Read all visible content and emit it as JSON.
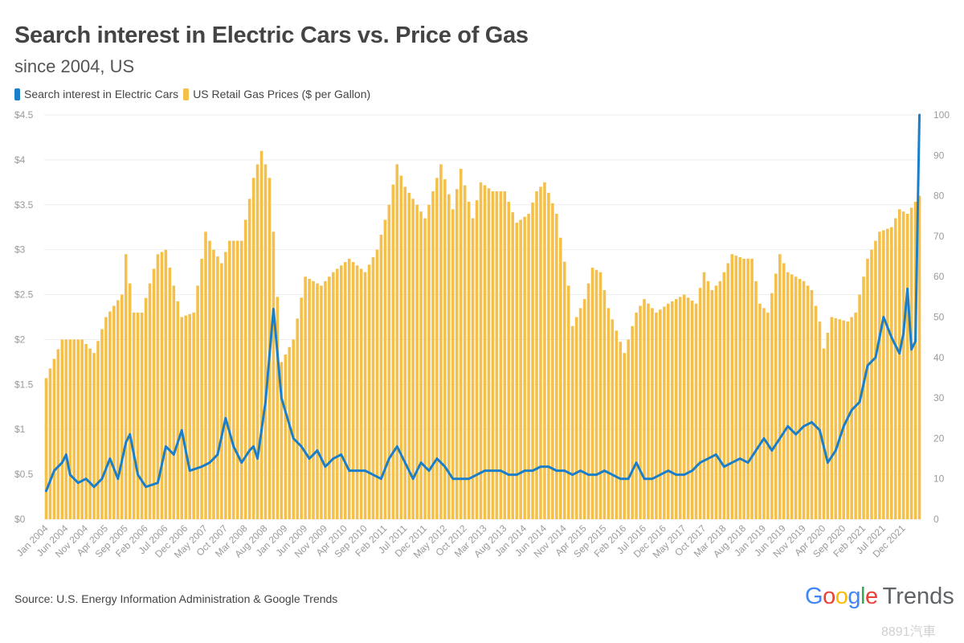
{
  "chart_data": {
    "type": "bar+line",
    "title": "Search interest in Electric Cars vs. Price of Gas",
    "subtitle": "since 2004, US",
    "legend": [
      {
        "name": "Search interest in Electric Cars",
        "color": "#1a7ec8"
      },
      {
        "name": "US Retail Gas Prices ($ per Gallon)",
        "color": "#f5c04a"
      }
    ],
    "legend_placement": "top-left",
    "x_tick_labels": [
      "Jan 2004",
      "Jun 2004",
      "Nov 2004",
      "Apr 2005",
      "Sep 2005",
      "Feb 2006",
      "Jul 2006",
      "Dec 2006",
      "May 2007",
      "Oct 2007",
      "Mar 2008",
      "Aug 2008",
      "Jan 2009",
      "Jun 2009",
      "Nov 2009",
      "Apr 2010",
      "Sep 2010",
      "Feb 2011",
      "Jul 2011",
      "Dec 2011",
      "May 2012",
      "Oct 2012",
      "Mar 2013",
      "Aug 2013",
      "Jan 2014",
      "Jun 2014",
      "Nov 2014",
      "Apr 2015",
      "Sep 2015",
      "Feb 2016",
      "Jul 2016",
      "Dec 2016",
      "May 2017",
      "Oct 2017",
      "Mar 2018",
      "Aug 2018",
      "Jan 2019",
      "Jun 2019",
      "Nov 2019",
      "Apr 2020",
      "Sep 2020",
      "Feb 2021",
      "Jul 2021",
      "Dec 2021"
    ],
    "x_range": [
      "Jan 2004",
      "Apr 2022"
    ],
    "y_left": {
      "ticks": [
        "$0",
        "$0.5",
        "$1",
        "$1.5",
        "$2",
        "$2.5",
        "$3",
        "$3.5",
        "$4",
        "$4.5"
      ],
      "range": [
        0,
        4.5
      ]
    },
    "y_right": {
      "ticks": [
        "0",
        "10",
        "20",
        "30",
        "40",
        "50",
        "60",
        "70",
        "80",
        "90",
        "100"
      ],
      "range": [
        0,
        100
      ]
    },
    "grid": true,
    "gas_price_knots": [
      [
        "2004-01",
        1.57
      ],
      [
        "2004-05",
        2.0
      ],
      [
        "2004-10",
        2.0
      ],
      [
        "2005-01",
        1.85
      ],
      [
        "2005-04",
        2.25
      ],
      [
        "2005-08",
        2.5
      ],
      [
        "2005-09",
        2.95
      ],
      [
        "2005-11",
        2.3
      ],
      [
        "2006-01",
        2.3
      ],
      [
        "2006-05",
        2.95
      ],
      [
        "2006-07",
        3.0
      ],
      [
        "2006-09",
        2.6
      ],
      [
        "2006-11",
        2.25
      ],
      [
        "2007-02",
        2.3
      ],
      [
        "2007-05",
        3.2
      ],
      [
        "2007-07",
        3.0
      ],
      [
        "2007-09",
        2.85
      ],
      [
        "2007-11",
        3.1
      ],
      [
        "2008-02",
        3.1
      ],
      [
        "2008-05",
        3.8
      ],
      [
        "2008-07",
        4.1
      ],
      [
        "2008-09",
        3.8
      ],
      [
        "2008-10",
        3.2
      ],
      [
        "2008-12",
        1.75
      ],
      [
        "2009-03",
        2.0
      ],
      [
        "2009-06",
        2.7
      ],
      [
        "2009-10",
        2.6
      ],
      [
        "2010-01",
        2.75
      ],
      [
        "2010-05",
        2.9
      ],
      [
        "2010-09",
        2.75
      ],
      [
        "2010-12",
        3.0
      ],
      [
        "2011-03",
        3.5
      ],
      [
        "2011-05",
        3.95
      ],
      [
        "2011-07",
        3.7
      ],
      [
        "2011-10",
        3.5
      ],
      [
        "2011-12",
        3.35
      ],
      [
        "2012-04",
        3.95
      ],
      [
        "2012-07",
        3.45
      ],
      [
        "2012-09",
        3.9
      ],
      [
        "2012-12",
        3.35
      ],
      [
        "2013-02",
        3.75
      ],
      [
        "2013-05",
        3.65
      ],
      [
        "2013-08",
        3.65
      ],
      [
        "2013-11",
        3.3
      ],
      [
        "2014-02",
        3.4
      ],
      [
        "2014-04",
        3.65
      ],
      [
        "2014-06",
        3.75
      ],
      [
        "2014-09",
        3.4
      ],
      [
        "2014-12",
        2.6
      ],
      [
        "2015-01",
        2.15
      ],
      [
        "2015-04",
        2.45
      ],
      [
        "2015-06",
        2.8
      ],
      [
        "2015-08",
        2.75
      ],
      [
        "2015-10",
        2.35
      ],
      [
        "2016-02",
        1.85
      ],
      [
        "2016-05",
        2.3
      ],
      [
        "2016-07",
        2.45
      ],
      [
        "2016-10",
        2.3
      ],
      [
        "2017-01",
        2.4
      ],
      [
        "2017-05",
        2.5
      ],
      [
        "2017-08",
        2.4
      ],
      [
        "2017-10",
        2.75
      ],
      [
        "2017-12",
        2.55
      ],
      [
        "2018-02",
        2.65
      ],
      [
        "2018-05",
        2.95
      ],
      [
        "2018-08",
        2.9
      ],
      [
        "2018-10",
        2.9
      ],
      [
        "2018-12",
        2.4
      ],
      [
        "2019-02",
        2.3
      ],
      [
        "2019-05",
        2.95
      ],
      [
        "2019-07",
        2.75
      ],
      [
        "2019-11",
        2.65
      ],
      [
        "2020-01",
        2.55
      ],
      [
        "2020-03",
        2.2
      ],
      [
        "2020-04",
        1.9
      ],
      [
        "2020-06",
        2.25
      ],
      [
        "2020-10",
        2.2
      ],
      [
        "2020-12",
        2.3
      ],
      [
        "2021-03",
        2.9
      ],
      [
        "2021-06",
        3.2
      ],
      [
        "2021-09",
        3.25
      ],
      [
        "2021-11",
        3.45
      ],
      [
        "2022-01",
        3.4
      ],
      [
        "2022-04",
        3.6
      ]
    ],
    "search_interest_knots": [
      [
        "2004-01",
        7
      ],
      [
        "2004-03",
        12
      ],
      [
        "2004-05",
        14
      ],
      [
        "2004-06",
        16
      ],
      [
        "2004-07",
        11
      ],
      [
        "2004-09",
        9
      ],
      [
        "2004-11",
        10
      ],
      [
        "2005-01",
        8
      ],
      [
        "2005-03",
        10
      ],
      [
        "2005-05",
        15
      ],
      [
        "2005-07",
        10
      ],
      [
        "2005-09",
        19
      ],
      [
        "2005-10",
        21
      ],
      [
        "2005-12",
        11
      ],
      [
        "2006-02",
        8
      ],
      [
        "2006-05",
        9
      ],
      [
        "2006-07",
        18
      ],
      [
        "2006-09",
        16
      ],
      [
        "2006-11",
        22
      ],
      [
        "2007-01",
        12
      ],
      [
        "2007-04",
        13
      ],
      [
        "2007-06",
        14
      ],
      [
        "2007-08",
        16
      ],
      [
        "2007-10",
        25
      ],
      [
        "2007-12",
        18
      ],
      [
        "2008-02",
        14
      ],
      [
        "2008-04",
        17
      ],
      [
        "2008-05",
        18
      ],
      [
        "2008-06",
        15
      ],
      [
        "2008-08",
        29
      ],
      [
        "2008-10",
        52
      ],
      [
        "2008-12",
        30
      ],
      [
        "2009-03",
        20
      ],
      [
        "2009-05",
        18
      ],
      [
        "2009-07",
        15
      ],
      [
        "2009-09",
        17
      ],
      [
        "2009-11",
        13
      ],
      [
        "2010-01",
        15
      ],
      [
        "2010-03",
        16
      ],
      [
        "2010-05",
        12
      ],
      [
        "2010-07",
        12
      ],
      [
        "2010-09",
        12
      ],
      [
        "2010-11",
        11
      ],
      [
        "2011-01",
        10
      ],
      [
        "2011-03",
        15
      ],
      [
        "2011-05",
        18
      ],
      [
        "2011-07",
        14
      ],
      [
        "2011-09",
        10
      ],
      [
        "2011-11",
        14
      ],
      [
        "2012-01",
        12
      ],
      [
        "2012-03",
        15
      ],
      [
        "2012-05",
        13
      ],
      [
        "2012-07",
        10
      ],
      [
        "2012-09",
        10
      ],
      [
        "2012-11",
        10
      ],
      [
        "2013-01",
        11
      ],
      [
        "2013-03",
        12
      ],
      [
        "2013-05",
        12
      ],
      [
        "2013-07",
        12
      ],
      [
        "2013-09",
        11
      ],
      [
        "2013-11",
        11
      ],
      [
        "2014-01",
        12
      ],
      [
        "2014-03",
        12
      ],
      [
        "2014-05",
        13
      ],
      [
        "2014-07",
        13
      ],
      [
        "2014-09",
        12
      ],
      [
        "2014-11",
        12
      ],
      [
        "2015-01",
        11
      ],
      [
        "2015-03",
        12
      ],
      [
        "2015-05",
        11
      ],
      [
        "2015-07",
        11
      ],
      [
        "2015-09",
        12
      ],
      [
        "2015-11",
        11
      ],
      [
        "2016-01",
        10
      ],
      [
        "2016-03",
        10
      ],
      [
        "2016-05",
        14
      ],
      [
        "2016-07",
        10
      ],
      [
        "2016-09",
        10
      ],
      [
        "2016-11",
        11
      ],
      [
        "2017-01",
        12
      ],
      [
        "2017-03",
        11
      ],
      [
        "2017-05",
        11
      ],
      [
        "2017-07",
        12
      ],
      [
        "2017-09",
        14
      ],
      [
        "2017-11",
        15
      ],
      [
        "2018-01",
        16
      ],
      [
        "2018-03",
        13
      ],
      [
        "2018-05",
        14
      ],
      [
        "2018-07",
        15
      ],
      [
        "2018-09",
        14
      ],
      [
        "2018-11",
        17
      ],
      [
        "2019-01",
        20
      ],
      [
        "2019-03",
        17
      ],
      [
        "2019-05",
        20
      ],
      [
        "2019-07",
        23
      ],
      [
        "2019-09",
        21
      ],
      [
        "2019-11",
        23
      ],
      [
        "2020-01",
        24
      ],
      [
        "2020-03",
        22
      ],
      [
        "2020-05",
        14
      ],
      [
        "2020-07",
        17
      ],
      [
        "2020-09",
        23
      ],
      [
        "2020-11",
        27
      ],
      [
        "2021-01",
        29
      ],
      [
        "2021-03",
        38
      ],
      [
        "2021-05",
        40
      ],
      [
        "2021-07",
        50
      ],
      [
        "2021-09",
        45
      ],
      [
        "2021-11",
        41
      ],
      [
        "2021-12",
        46
      ],
      [
        "2022-01",
        57
      ],
      [
        "2022-02",
        42
      ],
      [
        "2022-03",
        44
      ],
      [
        "2022-04",
        100
      ]
    ]
  },
  "source": "Source: U.S. Energy Information Administration & Google Trends",
  "brand": {
    "letters": [
      {
        "ch": "G",
        "color": "#4285F4"
      },
      {
        "ch": "o",
        "color": "#EA4335"
      },
      {
        "ch": "o",
        "color": "#FBBC05"
      },
      {
        "ch": "g",
        "color": "#4285F4"
      },
      {
        "ch": "l",
        "color": "#34A853"
      },
      {
        "ch": "e",
        "color": "#EA4335"
      }
    ],
    "suffix": "Trends"
  },
  "watermark": "8891汽車"
}
